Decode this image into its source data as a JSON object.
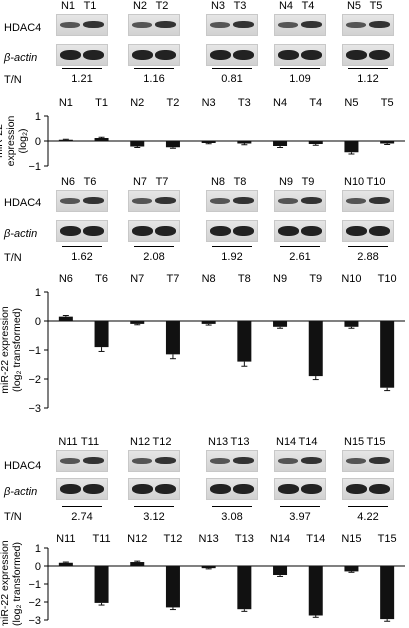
{
  "labels": {
    "hdac4": "HDAC4",
    "beta_actin": "β-actin",
    "ratio_label": "T/N"
  },
  "panels": [
    {
      "lanes": [
        [
          "N1",
          "T1"
        ],
        [
          "N2",
          "T2"
        ],
        [
          "N3",
          "T3"
        ],
        [
          "N4",
          "T4"
        ],
        [
          "N5",
          "T5"
        ]
      ],
      "ratios": [
        "1.21",
        "1.16",
        "0.81",
        "1.09",
        "1.12"
      ]
    },
    {
      "lanes": [
        [
          "N6",
          "T6"
        ],
        [
          "N7",
          "T7"
        ],
        [
          "N8",
          "T8"
        ],
        [
          "N9",
          "T9"
        ],
        [
          "N10",
          "T10"
        ]
      ],
      "ratios": [
        "1.62",
        "2.08",
        "1.92",
        "2.61",
        "2.88"
      ]
    },
    {
      "lanes": [
        [
          "N11",
          "T11"
        ],
        [
          "N12",
          "T12"
        ],
        [
          "N13",
          "T13"
        ],
        [
          "N14",
          "T14"
        ],
        [
          "N15",
          "T15"
        ]
      ],
      "ratios": [
        "2.74",
        "3.12",
        "3.08",
        "3.97",
        "4.22"
      ]
    }
  ],
  "chart_data": [
    {
      "type": "bar",
      "ylabel_lines": [
        "miR-22",
        "expression",
        "(log₂)"
      ],
      "categories": [
        "N1",
        "T1",
        "N2",
        "T2",
        "N3",
        "T3",
        "N4",
        "T4",
        "N5",
        "T5"
      ],
      "values": [
        0.05,
        0.12,
        -0.22,
        -0.25,
        -0.08,
        -0.1,
        -0.2,
        -0.12,
        -0.45,
        -0.1
      ],
      "errors": [
        0.02,
        0.03,
        0.04,
        0.04,
        0.03,
        0.05,
        0.06,
        0.05,
        0.07,
        0.04
      ],
      "ylim": [
        -1,
        1
      ],
      "yticks": [
        -1,
        0,
        1
      ],
      "tick_labels": [
        "−1",
        "0",
        "1"
      ]
    },
    {
      "type": "bar",
      "ylabel_lines": [
        "miR-22 expression",
        "(log₂ transformed)"
      ],
      "categories": [
        "N6",
        "T6",
        "N7",
        "T7",
        "N8",
        "T8",
        "N9",
        "T9",
        "N10",
        "T10"
      ],
      "values": [
        0.15,
        -0.9,
        -0.1,
        -1.15,
        -0.1,
        -1.4,
        -0.2,
        -1.9,
        -0.2,
        -2.3
      ],
      "errors": [
        0.04,
        0.15,
        0.03,
        0.15,
        0.04,
        0.16,
        0.05,
        0.12,
        0.05,
        0.1
      ],
      "ylim": [
        -3,
        1
      ],
      "yticks": [
        -3,
        -2,
        -1,
        0,
        1
      ],
      "tick_labels": [
        "−3",
        "−2",
        "−1",
        "0",
        "1"
      ]
    },
    {
      "type": "bar",
      "ylabel_lines": [
        "miR-22 expression",
        "(log₂ transformed)"
      ],
      "categories": [
        "N11",
        "T11",
        "N12",
        "T12",
        "N13",
        "T13",
        "N14",
        "T14",
        "N15",
        "T15"
      ],
      "values": [
        0.18,
        -2.05,
        0.22,
        -2.3,
        -0.12,
        -2.4,
        -0.5,
        -2.75,
        -0.3,
        -2.95
      ],
      "errors": [
        0.04,
        0.12,
        0.05,
        0.12,
        0.04,
        0.12,
        0.08,
        0.1,
        0.05,
        0.12
      ],
      "ylim": [
        -3,
        1
      ],
      "yticks": [
        -3,
        -2,
        -1,
        0,
        1
      ],
      "tick_labels": [
        "−3",
        "−2",
        "−1",
        "0",
        "1"
      ]
    }
  ]
}
